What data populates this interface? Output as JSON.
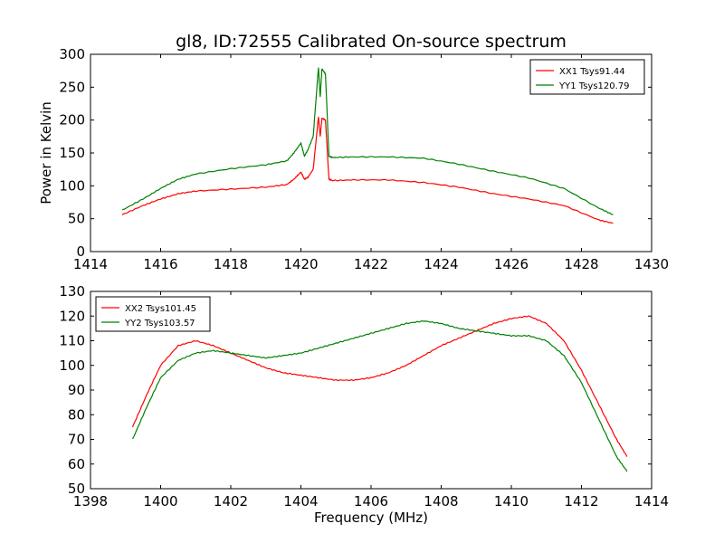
{
  "figure": {
    "title": "gl8, ID:72555 Calibrated On-source spectrum"
  },
  "chart_data": [
    {
      "type": "line",
      "title": "gl8, ID:72555 Calibrated On-source spectrum",
      "xlabel": "",
      "ylabel": "Power in Kelvin",
      "xlim": [
        1414,
        1430
      ],
      "ylim": [
        0,
        300
      ],
      "xticks": [
        1414,
        1416,
        1418,
        1420,
        1422,
        1424,
        1426,
        1428,
        1430
      ],
      "yticks": [
        0,
        50,
        100,
        150,
        200,
        250,
        300
      ],
      "grid": false,
      "legend_position": "top-right",
      "series": [
        {
          "name": "XX1 Tsys91.44",
          "color": "#ff0000",
          "x": [
            1414.9,
            1415.5,
            1416.0,
            1416.5,
            1417.0,
            1418.0,
            1419.0,
            1419.6,
            1419.8,
            1420.0,
            1420.1,
            1420.2,
            1420.35,
            1420.5,
            1420.55,
            1420.6,
            1420.7,
            1420.8,
            1420.9,
            1421.5,
            1422.5,
            1423.5,
            1424.5,
            1425.5,
            1426.5,
            1427.5,
            1428.5,
            1428.9
          ],
          "values": [
            56,
            70,
            80,
            88,
            92,
            95,
            98,
            102,
            110,
            121,
            110,
            113,
            125,
            205,
            175,
            203,
            200,
            110,
            108,
            109,
            109,
            105,
            98,
            88,
            80,
            70,
            48,
            43
          ]
        },
        {
          "name": "YY1 Tsys120.79",
          "color": "#008000",
          "x": [
            1414.9,
            1415.5,
            1416.0,
            1416.5,
            1417.0,
            1418.0,
            1419.0,
            1419.6,
            1419.8,
            1420.0,
            1420.1,
            1420.2,
            1420.35,
            1420.5,
            1420.55,
            1420.6,
            1420.7,
            1420.8,
            1420.9,
            1421.5,
            1422.5,
            1423.5,
            1424.5,
            1425.5,
            1426.5,
            1427.5,
            1428.5,
            1428.9
          ],
          "values": [
            63,
            80,
            96,
            110,
            118,
            126,
            132,
            138,
            150,
            165,
            145,
            155,
            175,
            280,
            235,
            278,
            270,
            145,
            143,
            144,
            144,
            142,
            133,
            122,
            112,
            96,
            66,
            56
          ]
        }
      ]
    },
    {
      "type": "line",
      "title": "",
      "xlabel": "Frequency (MHz)",
      "ylabel": "",
      "xlim": [
        1398,
        1414
      ],
      "ylim": [
        50,
        130
      ],
      "xticks": [
        1398,
        1400,
        1402,
        1404,
        1406,
        1408,
        1410,
        1412,
        1414
      ],
      "yticks": [
        50,
        60,
        70,
        80,
        90,
        100,
        110,
        120,
        130
      ],
      "grid": false,
      "legend_position": "top-left",
      "series": [
        {
          "name": "XX2 Tsys101.45",
          "color": "#ff0000",
          "x": [
            1399.2,
            1399.6,
            1400.0,
            1400.5,
            1401.0,
            1401.5,
            1402.0,
            1402.5,
            1403.0,
            1403.5,
            1404.0,
            1404.5,
            1405.0,
            1405.5,
            1406.0,
            1406.5,
            1407.0,
            1407.5,
            1408.0,
            1408.5,
            1409.0,
            1409.5,
            1410.0,
            1410.5,
            1411.0,
            1411.5,
            1412.0,
            1412.5,
            1413.0,
            1413.3
          ],
          "values": [
            75,
            88,
            100,
            108,
            110,
            108,
            105,
            102,
            99,
            97,
            96,
            95,
            94,
            94,
            95,
            97,
            100,
            104,
            108,
            111,
            114,
            117,
            119,
            120,
            117,
            110,
            98,
            84,
            70,
            63
          ]
        },
        {
          "name": "YY2 Tsys103.57",
          "color": "#008000",
          "x": [
            1399.2,
            1399.6,
            1400.0,
            1400.5,
            1401.0,
            1401.5,
            1402.0,
            1402.5,
            1403.0,
            1403.5,
            1404.0,
            1404.5,
            1405.0,
            1405.5,
            1406.0,
            1406.5,
            1407.0,
            1407.5,
            1408.0,
            1408.5,
            1409.0,
            1409.5,
            1410.0,
            1410.5,
            1411.0,
            1411.5,
            1412.0,
            1412.5,
            1413.0,
            1413.3
          ],
          "values": [
            70,
            83,
            95,
            102,
            105,
            106,
            105,
            104,
            103,
            104,
            105,
            107,
            109,
            111,
            113,
            115,
            117,
            118,
            117,
            115,
            114,
            113,
            112,
            112,
            110,
            104,
            93,
            78,
            63,
            57
          ]
        }
      ]
    }
  ]
}
